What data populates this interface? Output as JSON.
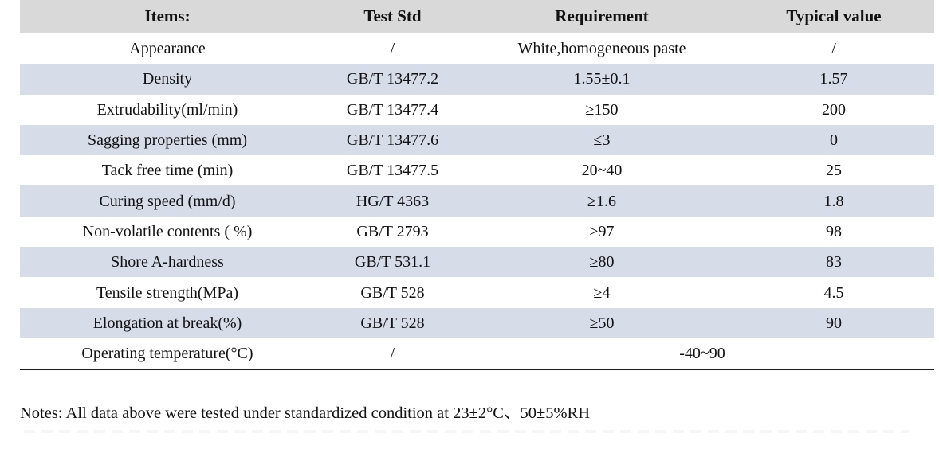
{
  "colors": {
    "header_bg": "#d9d9d9",
    "band_bg": "#d6dde8",
    "bottom_border": "#1c1c1c"
  },
  "table": {
    "headers": [
      "Items:",
      "Test Std",
      "Requirement",
      "Typical value"
    ],
    "rows": [
      {
        "item": "Appearance",
        "std": "/",
        "req": "White,homogeneous paste",
        "typ": "/"
      },
      {
        "item": "Density",
        "std": "GB/T 13477.2",
        "req": "1.55±0.1",
        "typ": "1.57"
      },
      {
        "item": "Extrudability(ml/min)",
        "std": "GB/T 13477.4",
        "req": "≥150",
        "typ": "200"
      },
      {
        "item": "Sagging properties (mm)",
        "std": "GB/T 13477.6",
        "req": "≤3",
        "typ": "0"
      },
      {
        "item": "Tack free time (min)",
        "std": "GB/T 13477.5",
        "req": "20~40",
        "typ": "25"
      },
      {
        "item": "Curing speed (mm/d)",
        "std": "HG/T 4363",
        "req": "≥1.6",
        "typ": "1.8"
      },
      {
        "item": "Non-volatile contents ( %)",
        "std": "GB/T 2793",
        "req": "≥97",
        "typ": "98"
      },
      {
        "item": "Shore A-hardness",
        "std": "GB/T 531.1",
        "req": "≥80",
        "typ": "83"
      },
      {
        "item": "Tensile strength(MPa)",
        "std": "GB/T 528",
        "req": "≥4",
        "typ": "4.5"
      },
      {
        "item": "Elongation at break(%)",
        "std": "GB/T 528",
        "req": "≥50",
        "typ": "90"
      },
      {
        "item": "Operating temperature(°C)",
        "std": "/",
        "req": "-40~90"
      }
    ]
  },
  "notes": "Notes: All data above were tested under standardized condition at 23±2°C、50±5%RH"
}
